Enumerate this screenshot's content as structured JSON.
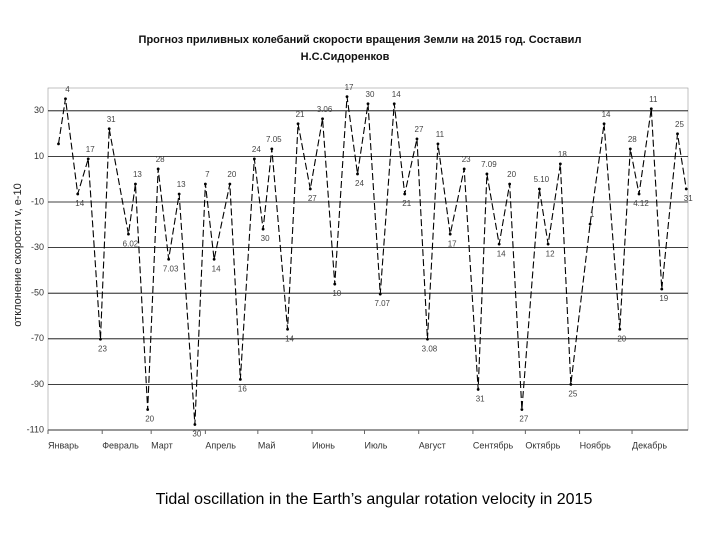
{
  "chart_data": {
    "type": "line",
    "title": "Прогноз приливных колебаний скорости вращения Земли на 2015 год. Составил",
    "subtitle": "Н.С.Сидоренков",
    "y_label": "отклонение скорости v, e-10",
    "caption": "Tidal oscillation in the Earth’s angular rotation velocity in 2015",
    "xlim": [
      0,
      366
    ],
    "xticks": [
      {
        "value": 0,
        "label": "Январь"
      },
      {
        "value": 31,
        "label": "Февраль"
      },
      {
        "value": 59,
        "label": "Март"
      },
      {
        "value": 90,
        "label": "Апрель"
      },
      {
        "value": 120,
        "label": "Май"
      },
      {
        "value": 151,
        "label": "Июнь"
      },
      {
        "value": 181,
        "label": "Июль"
      },
      {
        "value": 212,
        "label": "Август"
      },
      {
        "value": 243,
        "label": "Сентябрь"
      },
      {
        "value": 273,
        "label": "Октябрь"
      },
      {
        "value": 304,
        "label": "Ноябрь"
      },
      {
        "value": 334,
        "label": "Декабрь"
      }
    ],
    "ylim": [
      -110,
      40
    ],
    "yticks": [
      30,
      10,
      -10,
      -30,
      -50,
      -70,
      -90,
      -110
    ],
    "grid": true,
    "color": "#000000",
    "x": [
      6,
      10,
      17,
      23,
      30,
      35,
      46,
      50,
      57,
      63,
      69,
      75,
      84,
      90,
      95,
      104,
      110,
      118,
      123,
      128,
      137,
      143,
      150,
      157,
      164,
      171,
      177,
      183,
      190,
      198,
      204,
      211,
      217,
      223,
      230,
      238,
      246,
      251,
      258,
      264,
      271,
      281,
      286,
      293,
      299,
      310,
      318,
      327,
      333,
      338,
      345,
      351,
      360,
      365
    ],
    "values": [
      15.5,
      35.3,
      -6.5,
      8.9,
      -70.2,
      22.1,
      -24.1,
      -2.1,
      -101,
      4.5,
      -35.1,
      -6.5,
      -107.6,
      -2.1,
      -35.1,
      -2.1,
      -87.8,
      8.9,
      -21.9,
      13.3,
      -65.8,
      24.3,
      -4.3,
      26.5,
      -46,
      36.2,
      2.3,
      33.1,
      -50.4,
      33.1,
      -6.5,
      17.7,
      -70.2,
      15.5,
      -24.1,
      4.5,
      -92.2,
      2.3,
      -28.5,
      -2.1,
      -101,
      -4.3,
      -28.5,
      6.7,
      -90,
      -19.7,
      24.3,
      -65.8,
      13.3,
      -6.5,
      30.9,
      -48.2,
      19.9,
      -4.3
    ],
    "point_labels": [
      null,
      "4",
      "14",
      "17",
      "23",
      "31",
      "6.02",
      "13",
      "20",
      "28",
      "7.03",
      "13",
      "30",
      "7",
      "14",
      "20",
      "16",
      "24",
      "30",
      "7.05",
      "14",
      "21",
      "27",
      "3.06",
      "10",
      "17",
      "24",
      "30",
      "7.07",
      "14",
      "21",
      "27",
      "3.08",
      "11",
      "17",
      "23",
      "31",
      "7.09",
      "14",
      "20",
      "27",
      "5.10",
      "12",
      "18",
      "25",
      "1",
      "14",
      "20",
      "28",
      "4.12",
      "11",
      "19",
      "25",
      "31"
    ]
  }
}
